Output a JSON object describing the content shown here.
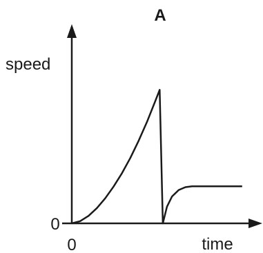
{
  "chart_data": {
    "type": "line",
    "title": "A",
    "xlabel": "time",
    "ylabel": "speed",
    "x_ticks": [
      "0"
    ],
    "y_ticks": [
      "0"
    ],
    "xlim": [
      0,
      10
    ],
    "ylim": [
      0,
      10
    ],
    "grid": false,
    "legend": "none",
    "series": [
      {
        "points": [
          [
            0,
            0
          ],
          [
            0.5,
            0.12
          ],
          [
            1,
            0.4
          ],
          [
            1.5,
            0.82
          ],
          [
            2,
            1.35
          ],
          [
            2.5,
            1.98
          ],
          [
            3,
            2.7
          ],
          [
            3.5,
            3.52
          ],
          [
            4,
            4.45
          ],
          [
            4.5,
            5.47
          ],
          [
            5,
            6.6
          ],
          [
            5.26,
            7.2
          ],
          [
            5.45,
            0
          ],
          [
            5.7,
            0.9
          ],
          [
            6,
            1.45
          ],
          [
            6.4,
            1.8
          ],
          [
            6.8,
            1.95
          ],
          [
            7.2,
            2.0
          ],
          [
            8,
            2.0
          ],
          [
            9,
            2.0
          ],
          [
            10.2,
            2.0
          ]
        ]
      }
    ],
    "colors": {
      "line": "#1a1a1a",
      "axis": "#1a1a1a"
    }
  }
}
